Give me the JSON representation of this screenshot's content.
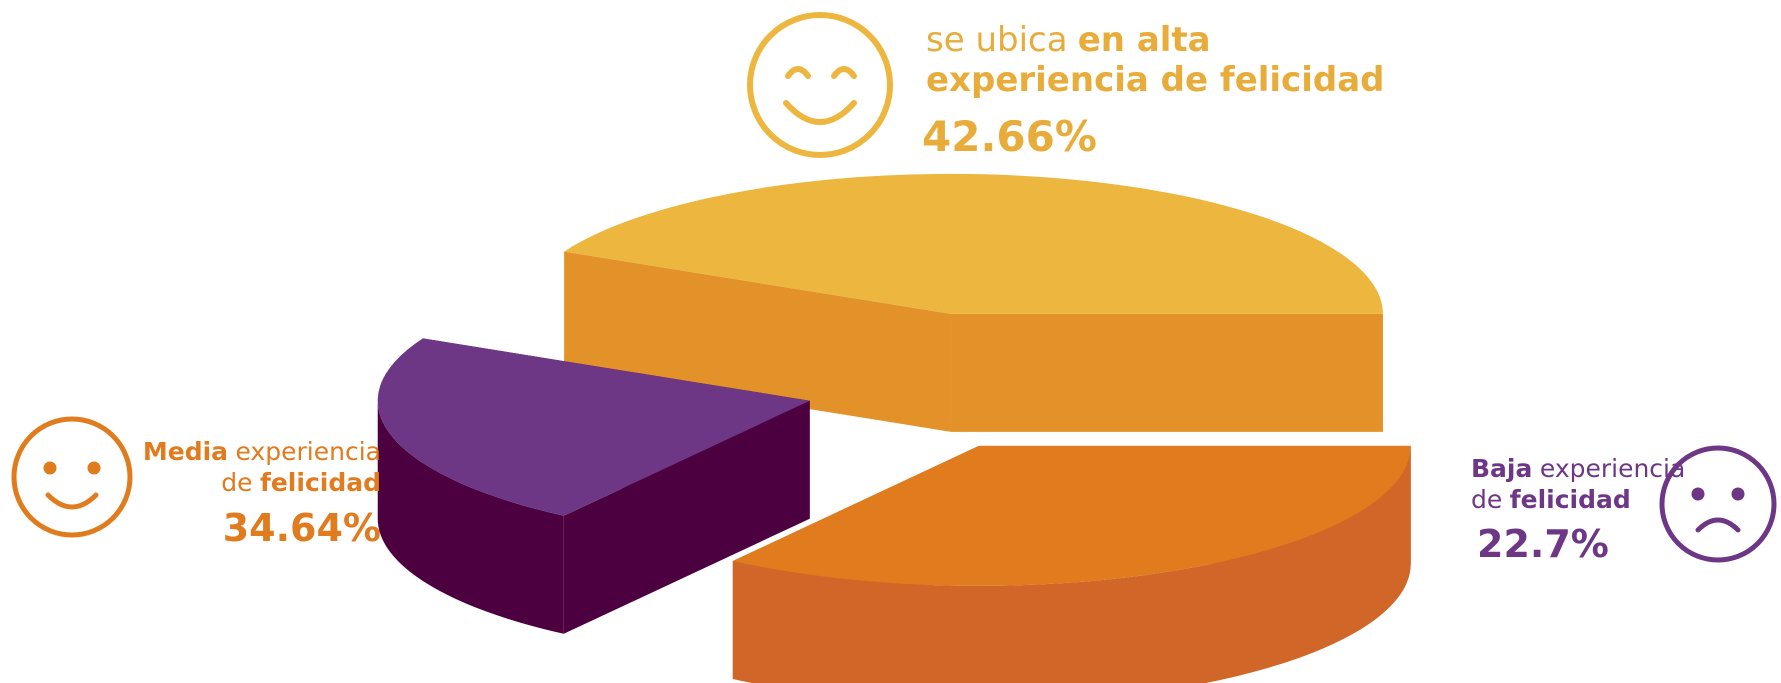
{
  "chart_data": {
    "type": "pie",
    "exploded": true,
    "labels": [
      [
        [
          {
            "text": "se ubica",
            "bold": false
          },
          {
            "text": "en alta",
            "bold": true
          }
        ],
        [
          {
            "text": "experiencia de felicidad",
            "bold": true
          }
        ]
      ],
      [
        [
          {
            "text": "Media",
            "bold": true
          },
          {
            "text": "experiencia",
            "bold": false
          }
        ],
        [
          {
            "text": "de",
            "bold": false
          },
          {
            "text": "felicidad",
            "bold": true
          }
        ]
      ],
      [
        [
          {
            "text": "Baja",
            "bold": true
          },
          {
            "text": "experiencia",
            "bold": false
          }
        ],
        [
          {
            "text": "de",
            "bold": false
          },
          {
            "text": "felicidad",
            "bold": true
          }
        ]
      ]
    ],
    "values": [
      42.66,
      34.64,
      22.7
    ],
    "value_labels": [
      "42.66%",
      "34.64%",
      "22.7%"
    ],
    "colors": [
      "#ecb63f",
      "#e07b1e",
      "#6e3786"
    ],
    "side_colors": [
      "#e3922a",
      "#d06628",
      "#4c003f"
    ],
    "text_colors": [
      "#e8ac3a",
      "#e07b1e",
      "#6e3786"
    ]
  }
}
